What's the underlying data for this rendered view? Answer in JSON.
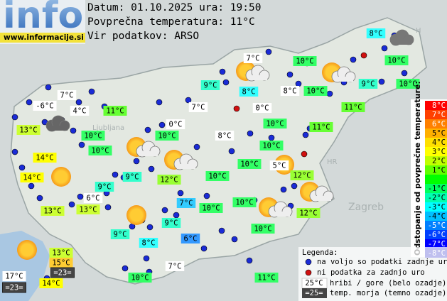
{
  "header": {
    "logo": "info",
    "url": "www.informacije.si",
    "lines": [
      "Datum: 01.10.2025 ura: 19:50",
      "Povprečna temperatura: 11°C",
      "Vir podatkov: ARSO"
    ]
  },
  "map_labels": [
    "Ljubljana",
    "Zagreb",
    "HR",
    "H"
  ],
  "stations": [
    {
      "label": "8°C",
      "color": "#33ffff"
    },
    {
      "label": "7°C",
      "color": "#ffffff"
    },
    {
      "label": "10°C",
      "color": "#33ff66"
    },
    {
      "label": "10°C",
      "color": "#33ff66"
    },
    {
      "label": "9°C",
      "color": "#33ffcc"
    },
    {
      "label": "8°C",
      "color": "#33ffff"
    },
    {
      "label": "8°C",
      "color": "#ffffff"
    },
    {
      "label": "10°C",
      "color": "#33ff66"
    },
    {
      "label": "9°C",
      "color": "#33ffcc"
    },
    {
      "label": "10°C",
      "color": "#33ff66"
    },
    {
      "label": "7°C",
      "color": "#ffffff"
    },
    {
      "label": "-6°C",
      "color": "#ffffff"
    },
    {
      "label": "4°C",
      "color": "#ffffff"
    },
    {
      "label": "11°C",
      "color": "#66ff33"
    },
    {
      "label": "7°C",
      "color": "#ffffff"
    },
    {
      "label": "0°C",
      "color": "#ffffff"
    },
    {
      "label": "11°C",
      "color": "#66ff33"
    },
    {
      "label": "13°C",
      "color": "#ccff33"
    },
    {
      "label": "10°C",
      "color": "#33ff66"
    },
    {
      "label": "0°C",
      "color": "#ffffff"
    },
    {
      "label": "8°C",
      "color": "#ffffff"
    },
    {
      "label": "10°C",
      "color": "#33ff66"
    },
    {
      "label": "11°C",
      "color": "#66ff33"
    },
    {
      "label": "10°C",
      "color": "#33ff66"
    },
    {
      "label": "10°C",
      "color": "#33ff66"
    },
    {
      "label": "10°C",
      "color": "#33ff66"
    },
    {
      "label": "14°C",
      "color": "#ffff00"
    },
    {
      "label": "10°C",
      "color": "#33ff66"
    },
    {
      "label": "5°C",
      "color": "#ffffff"
    },
    {
      "label": "9°C",
      "color": "#33ffcc"
    },
    {
      "label": "12°C",
      "color": "#99ff33"
    },
    {
      "label": "10°C",
      "color": "#33ff66"
    },
    {
      "label": "12°C",
      "color": "#99ff33"
    },
    {
      "label": "14°C",
      "color": "#ffff00"
    },
    {
      "label": "9°C",
      "color": "#33ffcc"
    },
    {
      "label": "6°C",
      "color": "#ffffff"
    },
    {
      "label": "7°C",
      "color": "#33ccff"
    },
    {
      "label": "10°C",
      "color": "#33ff66"
    },
    {
      "label": "10°C",
      "color": "#33ff66"
    },
    {
      "label": "13°C",
      "color": "#ccff33"
    },
    {
      "label": "13°C",
      "color": "#ccff33"
    },
    {
      "label": "12°C",
      "color": "#99ff33"
    },
    {
      "label": "9°C",
      "color": "#33ffcc"
    },
    {
      "label": "10°C",
      "color": "#33ff66"
    },
    {
      "label": "9°C",
      "color": "#33ffcc"
    },
    {
      "label": "8°C",
      "color": "#33ffff"
    },
    {
      "label": "6°C",
      "color": "#3399ff"
    },
    {
      "label": "13°C",
      "color": "#ccff33"
    },
    {
      "label": "15°C",
      "color": "#ffcc33"
    },
    {
      "label": "17°C",
      "color": "#ffffff"
    },
    {
      "label": "=23=",
      "color": "#444444"
    },
    {
      "label": "=23=",
      "color": "#444444"
    },
    {
      "label": "14°C",
      "color": "#ffff00"
    },
    {
      "label": "7°C",
      "color": "#ffffff"
    },
    {
      "label": "10°C",
      "color": "#33ff66"
    },
    {
      "label": "11°C",
      "color": "#33ff66"
    }
  ],
  "scale": {
    "title": "Odstopanje od povprečne temperature:",
    "labels": [
      "8°C",
      "7°C",
      "6°C",
      "5°C",
      "4°C",
      "3°C",
      "2°C",
      "1°C",
      null,
      "-1°C",
      "-2°C",
      "-3°C",
      "-4°C",
      "-5°C",
      "-6°C",
      "-7°C",
      "-8°C"
    ],
    "colors": [
      "#ff0000",
      "#ff4000",
      "#ff8000",
      "#ffb000",
      "#ffe000",
      "#ffff00",
      "#c0ff00",
      "#60ff00",
      "#00ff00",
      "#00ff60",
      "#00ffb0",
      "#00ffff",
      "#00c0ff",
      "#0080ff",
      "#0040ff",
      "#0000ff",
      "#0000c0"
    ]
  },
  "legend": {
    "title": "Legenda:",
    "available": "na voljo so podatki zadnje ure",
    "missing": "ni podatka za zadnjo uro",
    "mountain_sample": "25°C",
    "mountain_text": "hribi / gore (belo ozadje)",
    "sea_sample": "=25=",
    "sea_text": "temp. morja (temno ozadje)"
  }
}
